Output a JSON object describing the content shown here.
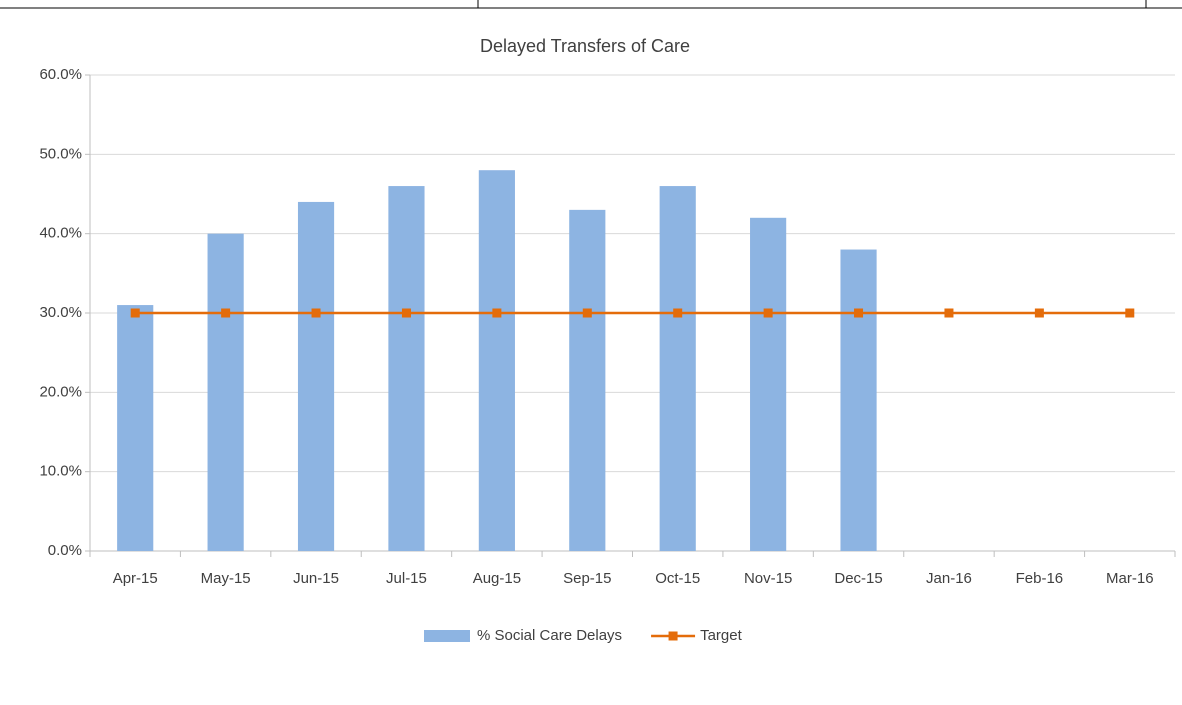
{
  "chart_data": {
    "type": "bar",
    "title": "Delayed Transfers of Care",
    "categories": [
      "Apr-15",
      "May-15",
      "Jun-15",
      "Jul-15",
      "Aug-15",
      "Sep-15",
      "Oct-15",
      "Nov-15",
      "Dec-15",
      "Jan-16",
      "Feb-16",
      "Mar-16"
    ],
    "series": [
      {
        "name": "% Social Care Delays",
        "type": "bar",
        "color": "#8db4e2",
        "values": [
          31,
          40,
          44,
          46,
          48,
          43,
          46,
          42,
          38,
          null,
          null,
          null
        ]
      },
      {
        "name": "Target",
        "type": "line",
        "color": "#e46c0a",
        "values": [
          30,
          30,
          30,
          30,
          30,
          30,
          30,
          30,
          30,
          30,
          30,
          30
        ]
      }
    ],
    "ylim": [
      0,
      60
    ],
    "yticks": [
      {
        "value": 0,
        "label": "0.0%"
      },
      {
        "value": 10,
        "label": "10.0%"
      },
      {
        "value": 20,
        "label": "20.0%"
      },
      {
        "value": 30,
        "label": "30.0%"
      },
      {
        "value": 40,
        "label": "40.0%"
      },
      {
        "value": 50,
        "label": "50.0%"
      },
      {
        "value": 60,
        "label": "60.0%"
      }
    ],
    "grid": true,
    "legend": "bottom"
  }
}
